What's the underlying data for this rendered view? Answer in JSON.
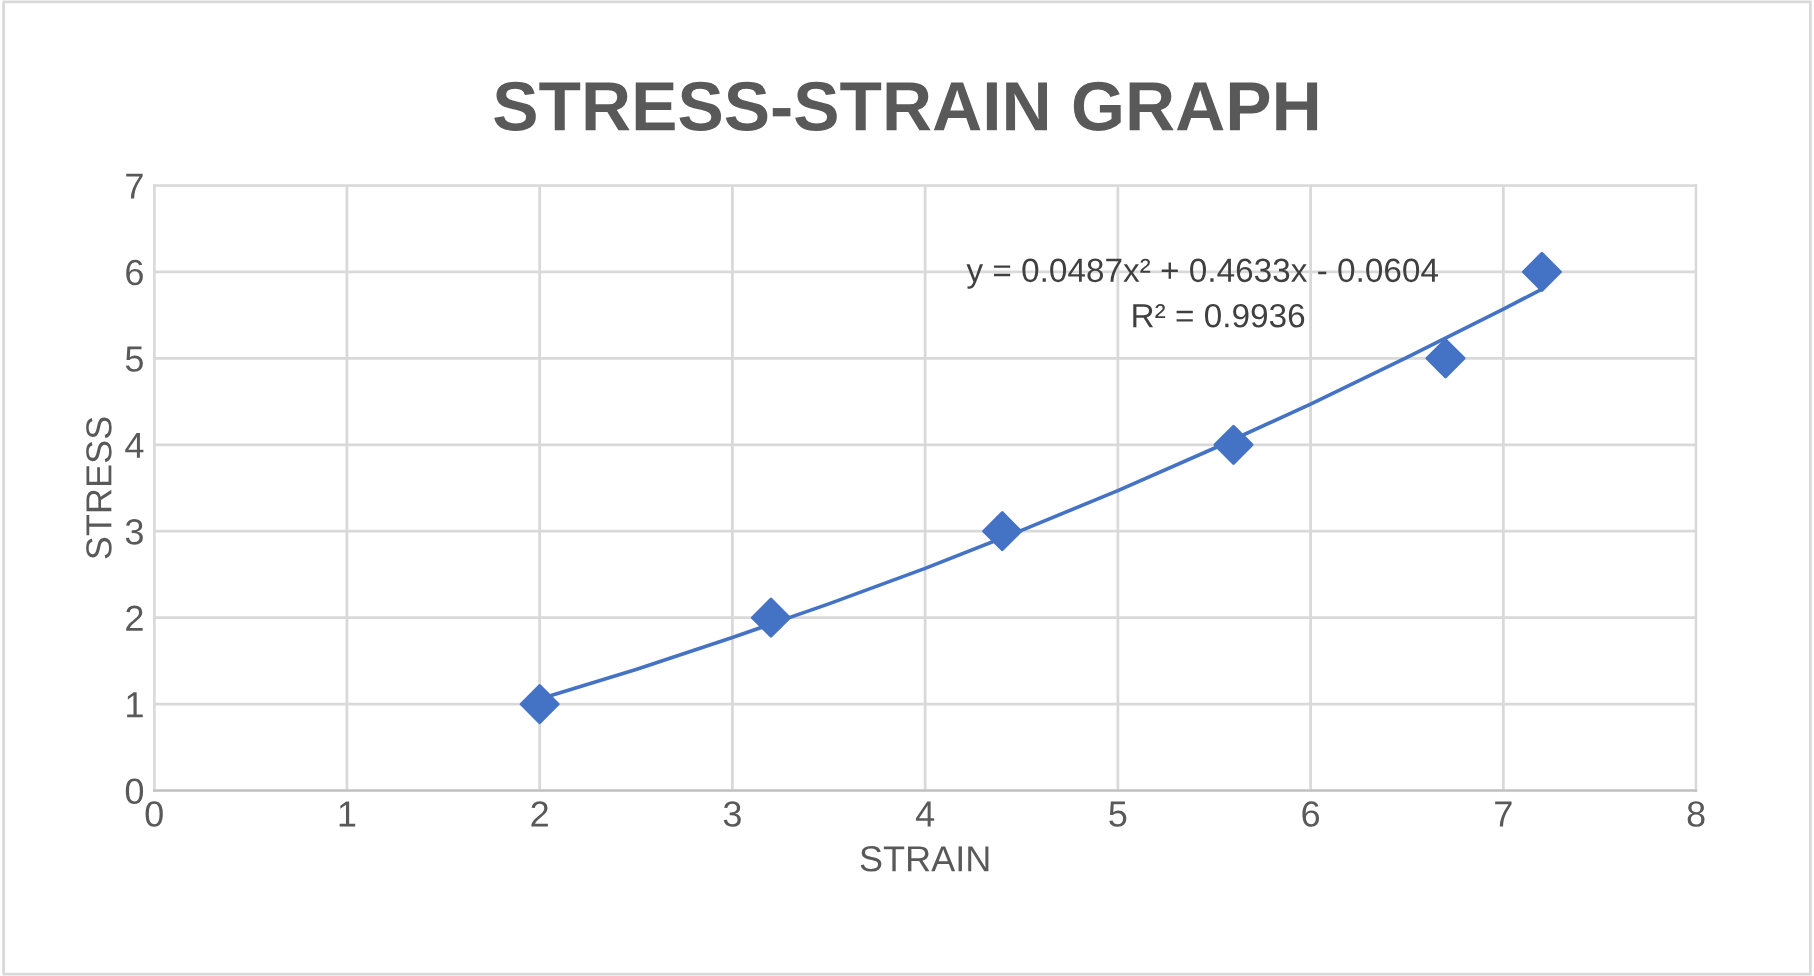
{
  "chart_data": {
    "type": "scatter",
    "title": "STRESS-STRAIN GRAPH",
    "xlabel": "STRAIN",
    "ylabel": "STRESS",
    "series": [
      {
        "color": "#4472c4",
        "marker": "diamond",
        "x": [
          2,
          3.2,
          4.4,
          5.6,
          6.7,
          7.2
        ],
        "values": [
          1,
          2,
          3,
          4,
          5,
          6
        ]
      },
      {
        "type": "line",
        "color": "#4472c4",
        "marker": "none",
        "line_style": "solid",
        "x": [
          2,
          2.5,
          3,
          3.5,
          4,
          4.5,
          5,
          5.5,
          6,
          6.5,
          7,
          7.2
        ],
        "values": [
          1.06,
          1.4,
          1.77,
          2.16,
          2.57,
          3.01,
          3.47,
          3.96,
          4.47,
          5.01,
          5.57,
          5.8
        ]
      }
    ],
    "annotations": [
      "y = 0.0487x² + 0.4633x - 0.0604",
      "R² = 0.9936"
    ],
    "xlim": [
      0,
      8
    ],
    "xticks": [
      0,
      1,
      2,
      3,
      4,
      5,
      6,
      7,
      8
    ],
    "ylim": [
      0,
      7
    ],
    "yticks": [
      0,
      1,
      2,
      3,
      4,
      5,
      6,
      7
    ],
    "grid": true,
    "legend": false
  }
}
